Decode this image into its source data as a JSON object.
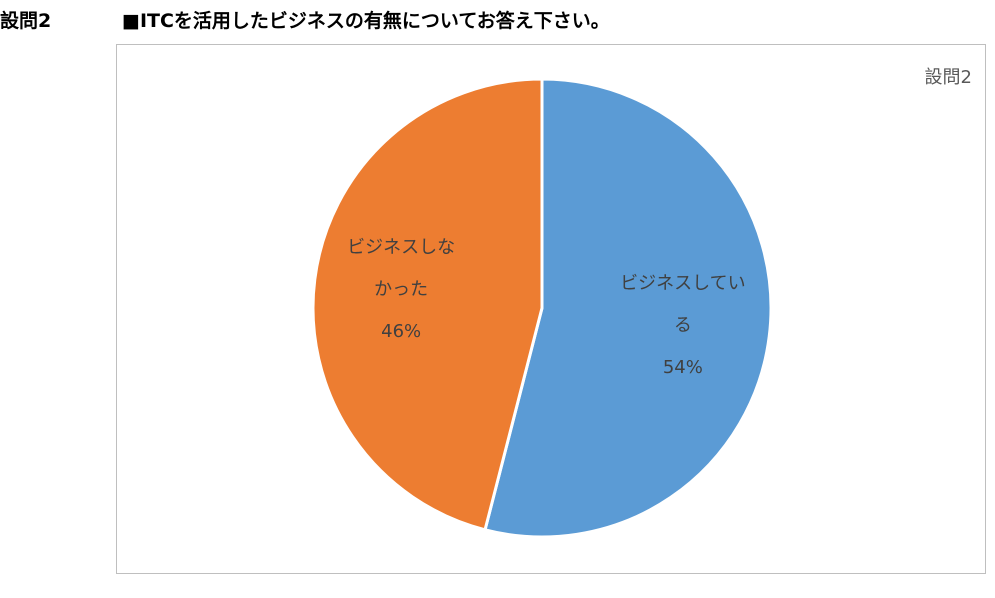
{
  "header": {
    "question_number": "設問2",
    "question_text": "■ITCを活用したビジネスの有無についてお答え下さい。"
  },
  "chart_data": {
    "type": "pie",
    "title": "設問2",
    "categories": [
      "ビジネスしている",
      "ビジネスしなかった"
    ],
    "values": [
      54,
      46
    ],
    "data_labels": [
      [
        "ビジネスしてい",
        "る",
        "54%"
      ],
      [
        "ビジネスしな",
        "かった",
        "46%"
      ]
    ],
    "colors": [
      "#5b9bd5",
      "#ed7d31"
    ],
    "legend": "none"
  }
}
